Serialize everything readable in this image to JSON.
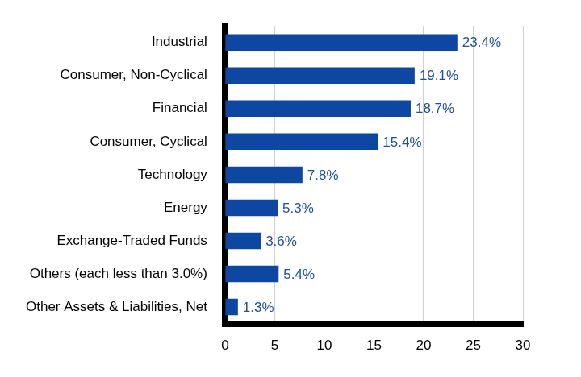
{
  "chart_data": {
    "type": "bar",
    "orientation": "horizontal",
    "categories": [
      "Industrial",
      "Consumer, Non-Cyclical",
      "Financial",
      "Consumer, Cyclical",
      "Technology",
      "Energy",
      "Exchange-Traded Funds",
      "Others (each less than 3.0%)",
      "Other Assets & Liabilities, Net"
    ],
    "values": [
      23.4,
      19.1,
      18.7,
      15.4,
      7.8,
      5.3,
      3.6,
      5.4,
      1.3
    ],
    "value_labels": [
      "23.4%",
      "19.1%",
      "18.7%",
      "15.4%",
      "7.8%",
      "5.3%",
      "3.6%",
      "5.4%",
      "1.3%"
    ],
    "color": "#0d47a1",
    "xlim": [
      0,
      30
    ],
    "xticks": [
      0,
      5,
      10,
      15,
      20,
      25,
      30
    ],
    "grid": true,
    "data_labels": true
  }
}
